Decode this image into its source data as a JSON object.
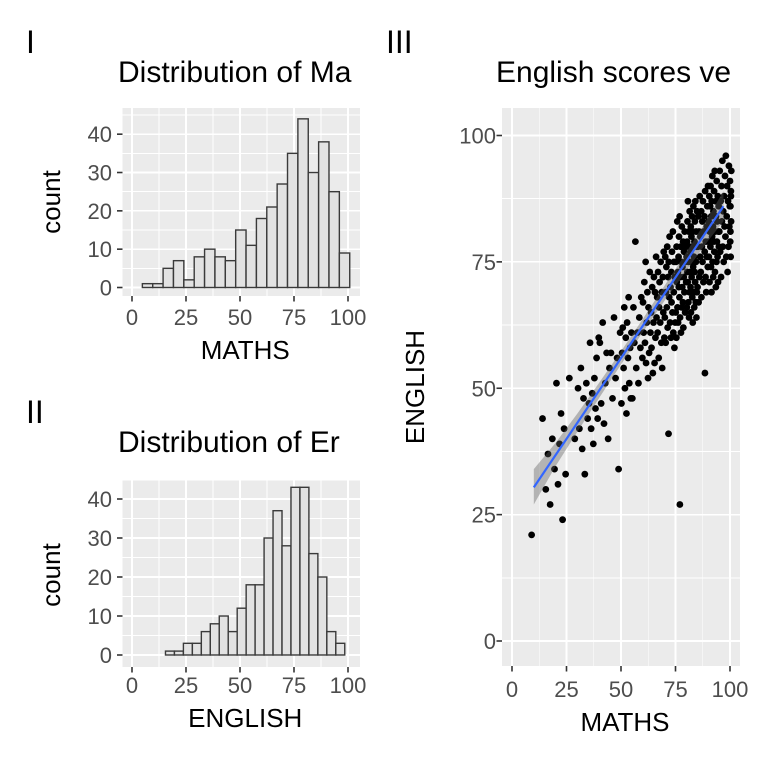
{
  "colors": {
    "background": "#FFFFFF",
    "panel_bg": "#EBEBEB",
    "grid": "#FFFFFF",
    "bar_fill": "#E2E2E2",
    "bar_stroke": "#3A3A3A",
    "point": "#000000",
    "smooth_line": "#3366FF",
    "ribbon": "rgba(95,95,95,0.40)",
    "tick": "#333333",
    "tick_label": "#4D4D4D",
    "text": "#000000"
  },
  "chart_data": [
    {
      "id": "hist-maths",
      "type": "bar",
      "tag": "I",
      "title": "Distribution of Ma",
      "xlabel": "MATHS",
      "ylabel": "count",
      "x_ticks": [
        0,
        25,
        50,
        75,
        100
      ],
      "y_ticks": [
        0,
        10,
        20,
        30,
        40
      ],
      "x_minor": [
        12.5,
        37.5,
        62.5,
        87.5
      ],
      "y_minor": [
        5,
        15,
        25,
        35,
        45
      ],
      "xlim": [
        -4.5,
        105.5
      ],
      "ylim": [
        -2.2,
        46.8
      ],
      "grid": true,
      "bin_start": 4.8,
      "bin_width": 4.8,
      "counts": [
        1,
        1,
        5,
        7,
        2,
        8,
        10,
        8,
        7,
        15,
        11,
        18,
        21,
        27,
        35,
        44,
        30,
        38,
        25,
        9
      ]
    },
    {
      "id": "hist-english",
      "type": "bar",
      "tag": "II",
      "title": "Distribution of Er",
      "xlabel": "ENGLISH",
      "ylabel": "count",
      "x_ticks": [
        0,
        25,
        50,
        75,
        100
      ],
      "y_ticks": [
        0,
        10,
        20,
        30,
        40
      ],
      "x_minor": [
        12.5,
        37.5,
        62.5,
        87.5
      ],
      "y_minor": [
        5,
        15,
        25,
        35,
        45
      ],
      "xlim": [
        -4.5,
        105.5
      ],
      "ylim": [
        -2.2,
        44.7
      ],
      "grid": true,
      "bin_start": 15.5,
      "bin_width": 4.15,
      "counts": [
        1,
        1,
        3,
        3,
        6,
        8,
        10,
        6,
        12,
        18,
        18,
        30,
        37,
        28,
        43,
        43,
        26,
        20,
        6,
        3
      ]
    },
    {
      "id": "scatter-english-maths",
      "type": "scatter",
      "tag": "III",
      "title": "English scores ve",
      "xlabel": "MATHS",
      "ylabel": "ENGLISH",
      "x_ticks": [
        0,
        25,
        50,
        75,
        100
      ],
      "y_ticks": [
        0,
        25,
        50,
        75,
        100
      ],
      "x_minor": [
        12.5,
        37.5,
        62.5,
        87.5
      ],
      "y_minor": [
        12.5,
        37.5,
        62.5,
        87.5
      ],
      "xlim": [
        -4.5,
        104.5
      ],
      "ylim": [
        -5,
        105.4
      ],
      "grid": true,
      "trend": {
        "line": {
          "x1": 10,
          "y1": 30.4,
          "x2": 97,
          "y2": 86
        },
        "ribbon_x": [
          10,
          20,
          30,
          40,
          50,
          60,
          70,
          80,
          90,
          97
        ],
        "ribbon_upper": [
          34,
          39.2,
          45,
          51.1,
          57.3,
          63.7,
          70.3,
          76.9,
          83.8,
          89
        ],
        "ribbon_lower": [
          27,
          34.6,
          41.4,
          48.1,
          54.7,
          61.1,
          67.3,
          73.3,
          79.2,
          83
        ]
      },
      "points": [
        [
          9,
          21
        ],
        [
          14,
          44
        ],
        [
          15.5,
          30
        ],
        [
          16.5,
          37
        ],
        [
          17.5,
          27
        ],
        [
          18.5,
          40
        ],
        [
          19.5,
          34
        ],
        [
          20.4,
          51
        ],
        [
          21.1,
          31
        ],
        [
          21.8,
          39
        ],
        [
          22.5,
          45
        ],
        [
          23.2,
          24
        ],
        [
          23.9,
          42
        ],
        [
          24.6,
          33
        ],
        [
          26.3,
          52
        ],
        [
          28.8,
          40
        ],
        [
          30.3,
          50
        ],
        [
          30.9,
          42
        ],
        [
          31.6,
          54
        ],
        [
          32.2,
          38
        ],
        [
          32.8,
          48
        ],
        [
          33.4,
          33
        ],
        [
          34.1,
          51
        ],
        [
          34.7,
          44
        ],
        [
          35.3,
          47
        ],
        [
          35.8,
          59
        ],
        [
          36.3,
          42
        ],
        [
          36.8,
          49
        ],
        [
          37.3,
          39
        ],
        [
          37.8,
          52
        ],
        [
          38.3,
          46
        ],
        [
          38.8,
          56
        ],
        [
          39.3,
          44
        ],
        [
          39.8,
          60
        ],
        [
          40.3,
          59
        ],
        [
          40.9,
          47
        ],
        [
          41.6,
          63
        ],
        [
          42.2,
          43
        ],
        [
          42.8,
          51
        ],
        [
          43.4,
          57
        ],
        [
          44.1,
          40
        ],
        [
          44.7,
          54
        ],
        [
          45.4,
          57
        ],
        [
          46.1,
          48
        ],
        [
          46.8,
          64
        ],
        [
          47.5,
          52
        ],
        [
          48.2,
          56
        ],
        [
          48.9,
          34
        ],
        [
          49.6,
          61
        ],
        [
          50.2,
          47
        ],
        [
          50.5,
          57
        ],
        [
          50.8,
          62
        ],
        [
          51.2,
          54
        ],
        [
          51.5,
          66
        ],
        [
          51.8,
          50
        ],
        [
          52.2,
          60
        ],
        [
          52.5,
          45
        ],
        [
          52.8,
          63
        ],
        [
          53.2,
          56
        ],
        [
          53.5,
          68
        ],
        [
          53.8,
          51
        ],
        [
          54.2,
          58
        ],
        [
          54.5,
          48
        ],
        [
          54.8,
          61
        ],
        [
          55.2,
          48
        ],
        [
          55.7,
          66
        ],
        [
          56.1,
          59
        ],
        [
          56.6,
          79
        ],
        [
          57,
          54
        ],
        [
          57.5,
          61
        ],
        [
          58,
          51
        ],
        [
          58.4,
          64
        ],
        [
          58.9,
          58
        ],
        [
          59.3,
          68
        ],
        [
          59.8,
          56
        ],
        [
          60.1,
          67
        ],
        [
          60.4,
          61
        ],
        [
          60.7,
          71
        ],
        [
          61,
          59
        ],
        [
          61.3,
          75
        ],
        [
          61.5,
          55
        ],
        [
          61.8,
          63
        ],
        [
          62.1,
          69
        ],
        [
          62.4,
          52
        ],
        [
          62.6,
          66
        ],
        [
          62.9,
          57
        ],
        [
          63.2,
          73
        ],
        [
          63.5,
          61
        ],
        [
          63.8,
          65
        ],
        [
          64,
          58
        ],
        [
          64.3,
          70
        ],
        [
          64.6,
          53
        ],
        [
          64.9,
          63
        ],
        [
          65.1,
          72
        ],
        [
          65.4,
          55
        ],
        [
          65.6,
          69
        ],
        [
          65.8,
          60
        ],
        [
          66.1,
          76
        ],
        [
          66.3,
          64
        ],
        [
          66.6,
          68
        ],
        [
          66.8,
          61
        ],
        [
          67,
          73
        ],
        [
          67.3,
          56
        ],
        [
          67.5,
          66
        ],
        [
          67.7,
          71
        ],
        [
          68,
          63
        ],
        [
          68.2,
          75
        ],
        [
          68.5,
          59
        ],
        [
          68.7,
          69
        ],
        [
          68.9,
          54
        ],
        [
          69.2,
          72
        ],
        [
          69.4,
          65
        ],
        [
          69.6,
          77
        ],
        [
          69.9,
          60
        ],
        [
          70.1,
          64
        ],
        [
          70.3,
          76
        ],
        [
          70.5,
          59
        ],
        [
          70.6,
          69
        ],
        [
          70.8,
          74
        ],
        [
          71,
          66
        ],
        [
          71.2,
          78
        ],
        [
          71.4,
          62
        ],
        [
          71.6,
          72
        ],
        [
          71.8,
          41
        ],
        [
          71.9,
          75
        ],
        [
          72.1,
          68
        ],
        [
          72.3,
          80
        ],
        [
          72.5,
          63
        ],
        [
          72.7,
          70
        ],
        [
          72.9,
          60
        ],
        [
          73.1,
          73
        ],
        [
          73.2,
          67
        ],
        [
          73.4,
          77
        ],
        [
          73.6,
          65
        ],
        [
          73.8,
          81
        ],
        [
          74,
          61
        ],
        [
          74.2,
          69
        ],
        [
          74.3,
          75
        ],
        [
          74.5,
          58
        ],
        [
          74.7,
          72
        ],
        [
          74.9,
          63
        ],
        [
          75.1,
          65
        ],
        [
          75.2,
          75
        ],
        [
          75.4,
          60
        ],
        [
          75.5,
          78
        ],
        [
          75.6,
          71
        ],
        [
          75.8,
          83
        ],
        [
          75.9,
          66
        ],
        [
          76.1,
          73
        ],
        [
          76.2,
          63
        ],
        [
          76.4,
          76
        ],
        [
          76.5,
          70
        ],
        [
          76.6,
          80
        ],
        [
          76.8,
          68
        ],
        [
          76.9,
          84
        ],
        [
          77.1,
          64
        ],
        [
          77.2,
          72
        ],
        [
          77.4,
          78
        ],
        [
          77.5,
          61
        ],
        [
          77.6,
          75
        ],
        [
          77.8,
          66
        ],
        [
          77.9,
          82
        ],
        [
          78.1,
          70
        ],
        [
          78.2,
          74
        ],
        [
          78.4,
          67
        ],
        [
          78.5,
          79
        ],
        [
          78.6,
          62
        ],
        [
          78.8,
          72
        ],
        [
          78.9,
          77
        ],
        [
          79.1,
          69
        ],
        [
          79.2,
          81
        ],
        [
          79.4,
          65
        ],
        [
          79.5,
          75
        ],
        [
          77,
          27
        ],
        [
          79.8,
          78
        ],
        [
          79.9,
          71
        ],
        [
          80.1,
          76
        ],
        [
          80.2,
          66
        ],
        [
          80.3,
          79
        ],
        [
          80.4,
          73
        ],
        [
          80.5,
          83
        ],
        [
          80.6,
          71
        ],
        [
          80.7,
          87
        ],
        [
          80.9,
          67
        ],
        [
          81,
          75
        ],
        [
          81.1,
          81
        ],
        [
          81.2,
          64
        ],
        [
          81.3,
          78
        ],
        [
          81.4,
          69
        ],
        [
          81.5,
          85
        ],
        [
          81.6,
          73
        ],
        [
          81.8,
          77
        ],
        [
          81.9,
          70
        ],
        [
          82,
          82
        ],
        [
          82.1,
          65
        ],
        [
          82.2,
          75
        ],
        [
          82.3,
          80
        ],
        [
          82.4,
          72
        ],
        [
          82.6,
          84
        ],
        [
          82.7,
          68
        ],
        [
          82.8,
          78
        ],
        [
          82.9,
          63
        ],
        [
          83,
          81
        ],
        [
          83.1,
          74
        ],
        [
          83.2,
          86
        ],
        [
          83.4,
          69
        ],
        [
          83.5,
          76
        ],
        [
          83.6,
          66
        ],
        [
          83.7,
          79
        ],
        [
          83.8,
          73
        ],
        [
          83.9,
          83
        ],
        [
          84,
          71
        ],
        [
          84.1,
          87
        ],
        [
          84.3,
          67
        ],
        [
          84.4,
          75
        ],
        [
          84.5,
          81
        ],
        [
          84.6,
          64
        ],
        [
          84.7,
          78
        ],
        [
          84.8,
          69
        ],
        [
          84.9,
          85
        ],
        [
          85.1,
          70
        ],
        [
          85.3,
          78
        ],
        [
          85.4,
          84
        ],
        [
          85.6,
          67
        ],
        [
          85.8,
          81
        ],
        [
          85.9,
          72
        ],
        [
          86.1,
          88
        ],
        [
          86.3,
          76
        ],
        [
          86.4,
          80
        ],
        [
          86.6,
          73
        ],
        [
          86.8,
          85
        ],
        [
          86.9,
          68
        ],
        [
          87.1,
          78
        ],
        [
          87.3,
          83
        ],
        [
          87.4,
          75
        ],
        [
          87.6,
          87
        ],
        [
          87.8,
          71
        ],
        [
          87.9,
          81
        ],
        [
          88.5,
          53
        ],
        [
          88.3,
          84
        ],
        [
          88.4,
          77
        ],
        [
          88.6,
          89
        ],
        [
          88.8,
          72
        ],
        [
          88.9,
          79
        ],
        [
          89.1,
          69
        ],
        [
          89.3,
          82
        ],
        [
          89.4,
          76
        ],
        [
          89.6,
          86
        ],
        [
          89.8,
          74
        ],
        [
          89.9,
          90
        ],
        [
          90.1,
          79
        ],
        [
          90.2,
          83
        ],
        [
          90.3,
          76
        ],
        [
          90.5,
          88
        ],
        [
          90.6,
          71
        ],
        [
          90.7,
          81
        ],
        [
          90.9,
          86
        ],
        [
          91,
          78
        ],
        [
          91.1,
          90
        ],
        [
          91.3,
          74
        ],
        [
          91.4,
          84
        ],
        [
          91.5,
          69
        ],
        [
          91.6,
          87
        ],
        [
          91.8,
          80
        ],
        [
          91.9,
          92
        ],
        [
          92,
          75
        ],
        [
          92.2,
          82
        ],
        [
          92.3,
          72
        ],
        [
          92.4,
          85
        ],
        [
          92.6,
          79
        ],
        [
          92.7,
          89
        ],
        [
          92.8,
          77
        ],
        [
          93,
          93
        ],
        [
          93.1,
          73
        ],
        [
          93.2,
          81
        ],
        [
          93.4,
          87
        ],
        [
          93.5,
          70
        ],
        [
          93.6,
          84
        ],
        [
          93.8,
          75
        ],
        [
          93.9,
          91
        ],
        [
          94,
          79
        ],
        [
          94.1,
          83
        ],
        [
          94.3,
          76
        ],
        [
          94.4,
          88
        ],
        [
          94.5,
          71
        ],
        [
          94.7,
          81
        ],
        [
          94.8,
          86
        ],
        [
          94.9,
          78
        ],
        [
          95.1,
          81
        ],
        [
          95.3,
          93
        ],
        [
          95.5,
          77
        ],
        [
          95.7,
          87
        ],
        [
          95.9,
          72
        ],
        [
          96.1,
          90
        ],
        [
          96.3,
          83
        ],
        [
          96.5,
          95
        ],
        [
          96.7,
          78
        ],
        [
          96.9,
          85
        ],
        [
          97.1,
          75
        ],
        [
          97.3,
          88
        ],
        [
          97.5,
          82
        ],
        [
          97.7,
          92
        ],
        [
          97.9,
          80
        ],
        [
          98.1,
          96
        ],
        [
          98.3,
          76
        ],
        [
          98.5,
          84
        ],
        [
          98.7,
          90
        ],
        [
          98.9,
          73
        ],
        [
          99.1,
          87
        ],
        [
          99.3,
          78
        ],
        [
          99.5,
          94
        ],
        [
          99.7,
          82
        ],
        [
          99.9,
          86
        ],
        [
          100,
          91
        ],
        [
          100.1,
          79
        ],
        [
          100.2,
          86
        ],
        [
          100.3,
          76
        ],
        [
          100.4,
          89
        ],
        [
          100.5,
          83
        ],
        [
          100.6,
          93
        ],
        [
          100.2,
          81
        ],
        [
          100.4,
          88
        ]
      ]
    }
  ]
}
